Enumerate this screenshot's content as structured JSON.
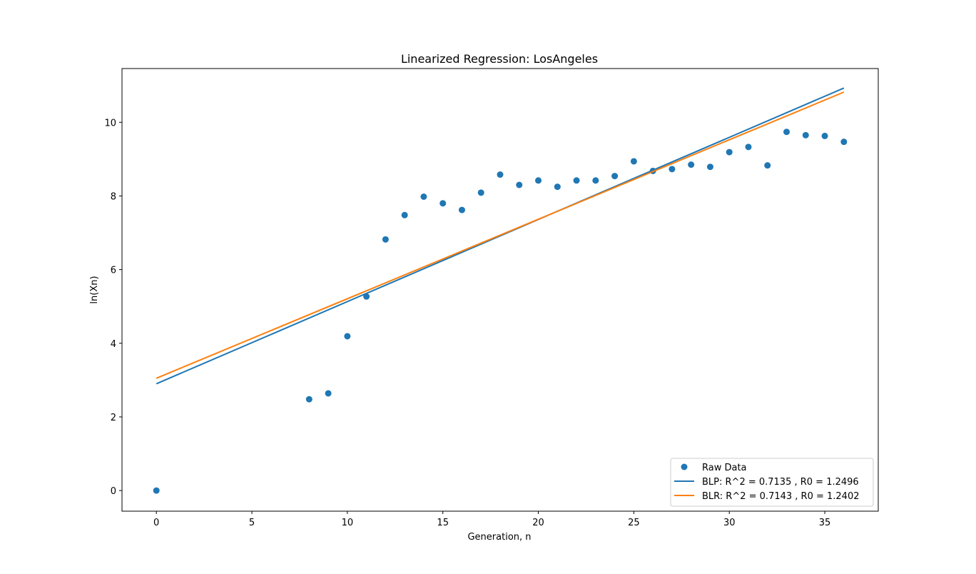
{
  "chart_data": {
    "type": "scatter",
    "title": "Linearized Regression: LosAngeles",
    "xlabel": "Generation, n",
    "ylabel": "ln(Xn)",
    "xlim": [
      -1.8,
      37.8
    ],
    "ylim": [
      -0.56,
      11.46
    ],
    "xticks": [
      0,
      5,
      10,
      15,
      20,
      25,
      30,
      35
    ],
    "yticks": [
      0,
      2,
      4,
      6,
      8,
      10
    ],
    "grid": false,
    "legend_position": "lower-right",
    "series": [
      {
        "name": "Raw Data",
        "kind": "scatter",
        "color": "#1f77b4",
        "x": [
          0,
          8,
          9,
          10,
          11,
          12,
          13,
          14,
          15,
          16,
          17,
          18,
          19,
          20,
          21,
          22,
          23,
          24,
          25,
          26,
          27,
          28,
          29,
          30,
          31,
          32,
          33,
          34,
          35,
          36
        ],
        "y": [
          0.0,
          2.48,
          2.64,
          4.19,
          5.27,
          6.82,
          7.48,
          7.98,
          7.8,
          7.62,
          8.09,
          8.58,
          8.3,
          8.42,
          8.25,
          8.42,
          8.42,
          8.54,
          8.94,
          8.68,
          8.73,
          8.85,
          8.79,
          9.19,
          9.33,
          8.83,
          9.74,
          9.65,
          9.63,
          9.47
        ]
      },
      {
        "name": "BLP: R^2 = 0.7135 , R0 = 1.2496",
        "kind": "line",
        "color": "#1f77b4",
        "x": [
          0,
          36
        ],
        "y": [
          2.9,
          10.93
        ]
      },
      {
        "name": "BLR: R^2 = 0.7143 , R0 = 1.2402",
        "kind": "line",
        "color": "#ff7f0e",
        "x": [
          0,
          36
        ],
        "y": [
          3.05,
          10.82
        ]
      }
    ]
  }
}
